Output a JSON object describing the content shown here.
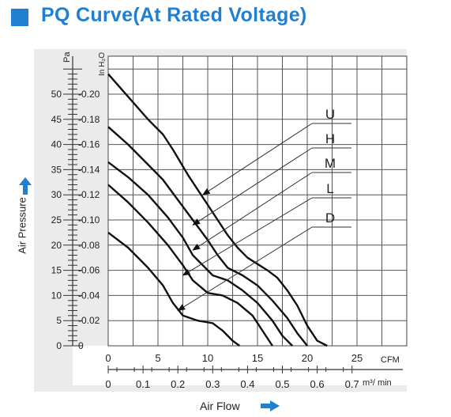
{
  "title": "PQ Curve(At Rated Voltage)",
  "chart_data": {
    "type": "line",
    "title": "PQ Curve(At Rated Voltage)",
    "xlabel": "Air Flow",
    "ylabel": "Air Pressure",
    "x_unit_primary": "CFM",
    "x_unit_secondary": "m³/ min",
    "y_unit_primary": "Pa",
    "y_unit_secondary": "In H₂O",
    "xlim": [
      0,
      30
    ],
    "ylim": [
      0,
      54
    ],
    "x_ticks": [
      "0",
      "5",
      "10",
      "15",
      "20",
      "25"
    ],
    "x2_ticks": [
      "0",
      "0.1",
      "0.2",
      "0.3",
      "0.4",
      "0.5",
      "0.6",
      "0.7"
    ],
    "y_ticks": [
      "0",
      "5",
      "10",
      "15",
      "20",
      "25",
      "30",
      "35",
      "40",
      "45",
      "50"
    ],
    "y2_ticks": [
      "0",
      "0.02",
      "0.04",
      "0.06",
      "0.08",
      "0.10",
      "0.12",
      "0.14",
      "0.16",
      "0.18",
      "0.20"
    ],
    "grid": true,
    "series": [
      {
        "name": "U",
        "values": [
          [
            0,
            54
          ],
          [
            2,
            49.5
          ],
          [
            4,
            45
          ],
          [
            5.5,
            42
          ],
          [
            6.5,
            39
          ],
          [
            8,
            34
          ],
          [
            10,
            28
          ],
          [
            11,
            25
          ],
          [
            12,
            22
          ],
          [
            13,
            19.5
          ],
          [
            14,
            17.5
          ],
          [
            16,
            15
          ],
          [
            17,
            13.5
          ],
          [
            18,
            11
          ],
          [
            19,
            8
          ],
          [
            20,
            4
          ],
          [
            21,
            1
          ],
          [
            22,
            0
          ]
        ]
      },
      {
        "name": "H",
        "values": [
          [
            0,
            43.5
          ],
          [
            2,
            40
          ],
          [
            4,
            36
          ],
          [
            5.5,
            33
          ],
          [
            7,
            29
          ],
          [
            8.5,
            25
          ],
          [
            10,
            21
          ],
          [
            11,
            18
          ],
          [
            12,
            15.5
          ],
          [
            13.5,
            14
          ],
          [
            15,
            12
          ],
          [
            16.5,
            9
          ],
          [
            18,
            5.5
          ],
          [
            19,
            2.5
          ],
          [
            20,
            0
          ]
        ]
      },
      {
        "name": "M",
        "values": [
          [
            0,
            36.5
          ],
          [
            2,
            33.5
          ],
          [
            4,
            30
          ],
          [
            6,
            25.5
          ],
          [
            7.5,
            21.5
          ],
          [
            8.5,
            18
          ],
          [
            9.5,
            16
          ],
          [
            10.5,
            14
          ],
          [
            12,
            13
          ],
          [
            13.5,
            11
          ],
          [
            15,
            8.5
          ],
          [
            16.5,
            5
          ],
          [
            17.5,
            2
          ],
          [
            18.5,
            0
          ]
        ]
      },
      {
        "name": "L",
        "values": [
          [
            0,
            32
          ],
          [
            2,
            28.5
          ],
          [
            4,
            24.5
          ],
          [
            6,
            20
          ],
          [
            7.5,
            16
          ],
          [
            8.5,
            13
          ],
          [
            10,
            10.5
          ],
          [
            11.5,
            10
          ],
          [
            13,
            8.5
          ],
          [
            14.5,
            6
          ],
          [
            15.5,
            3
          ],
          [
            16.5,
            0
          ]
        ]
      },
      {
        "name": "D",
        "values": [
          [
            0,
            22.5
          ],
          [
            2,
            19.5
          ],
          [
            4,
            15.5
          ],
          [
            5.5,
            12
          ],
          [
            6.5,
            8.5
          ],
          [
            7.5,
            6
          ],
          [
            9,
            5
          ],
          [
            10.5,
            4.5
          ],
          [
            11.5,
            3
          ],
          [
            12.5,
            1
          ],
          [
            13.2,
            0
          ]
        ]
      }
    ],
    "annotations": [
      "U",
      "H",
      "M",
      "L",
      "D"
    ]
  }
}
